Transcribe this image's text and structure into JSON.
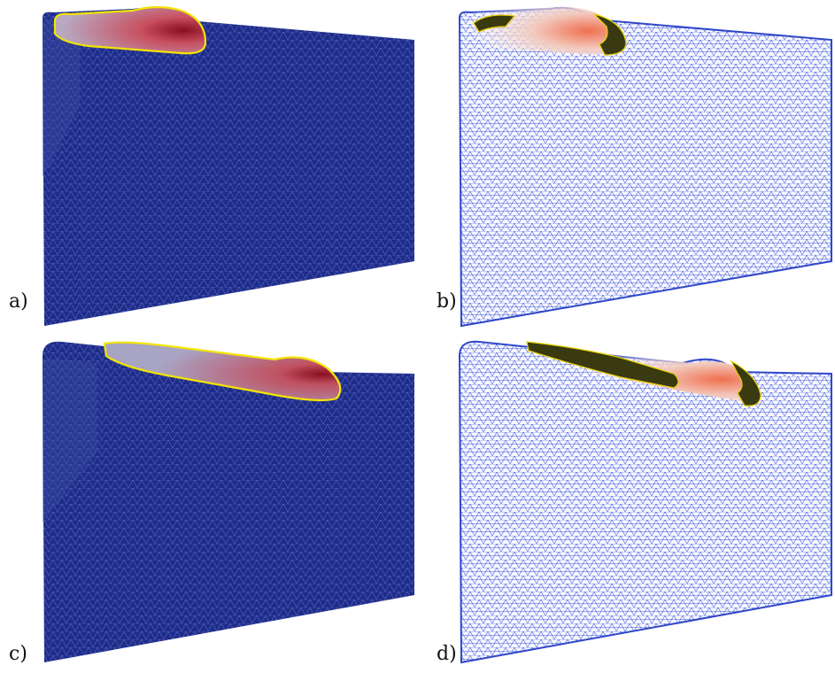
{
  "colors": {
    "mesh_dark_fill": "#1f2d8a",
    "mesh_dark_line": "#5a68c0",
    "mesh_wire_line": "#3b55d9",
    "pool_hot": "#8a1020",
    "pool_warm": "#e8c0c0",
    "boundary_line": "#f2e600",
    "band_fill": "#3a3a10"
  },
  "panels": [
    {
      "id": "a",
      "label": "a)",
      "style": "solid-mesh"
    },
    {
      "id": "b",
      "label": "b)",
      "style": "wireframe"
    },
    {
      "id": "c",
      "label": "c)",
      "style": "solid-mesh"
    },
    {
      "id": "d",
      "label": "d)",
      "style": "wireframe"
    }
  ]
}
